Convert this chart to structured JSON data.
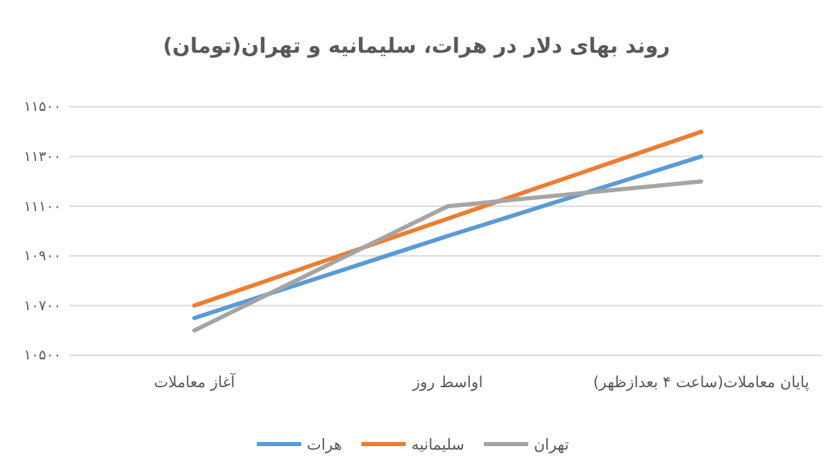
{
  "chart_data": {
    "type": "line",
    "title": "روند بهای دلار در هرات، سلیمانیه و تهران(تومان)",
    "categories": [
      "آغاز معاملات",
      "اواسط روز",
      "پایان معاملات(ساعت ۴ بعدازظهر)"
    ],
    "series": [
      {
        "name": "هرات",
        "color": "#5b9bd5",
        "values": [
          10650,
          10980,
          11300
        ]
      },
      {
        "name": "سلیمانیه",
        "color": "#ed7d31",
        "values": [
          10700,
          11050,
          11400
        ]
      },
      {
        "name": "تهران",
        "color": "#a5a5a5",
        "values": [
          10600,
          11100,
          11200
        ]
      }
    ],
    "ylim": [
      10500,
      11500
    ],
    "yticks": [
      {
        "value": 10500,
        "label": "۱۰۵۰۰"
      },
      {
        "value": 10700,
        "label": "۱۰۷۰۰"
      },
      {
        "value": 10900,
        "label": "۱۰۹۰۰"
      },
      {
        "value": 11100,
        "label": "۱۱۱۰۰"
      },
      {
        "value": 11300,
        "label": "۱۱۳۰۰"
      },
      {
        "value": 11500,
        "label": "۱۱۵۰۰"
      }
    ],
    "grid": "y",
    "legend": "bottom",
    "marker": "none",
    "line_style": "solid"
  }
}
